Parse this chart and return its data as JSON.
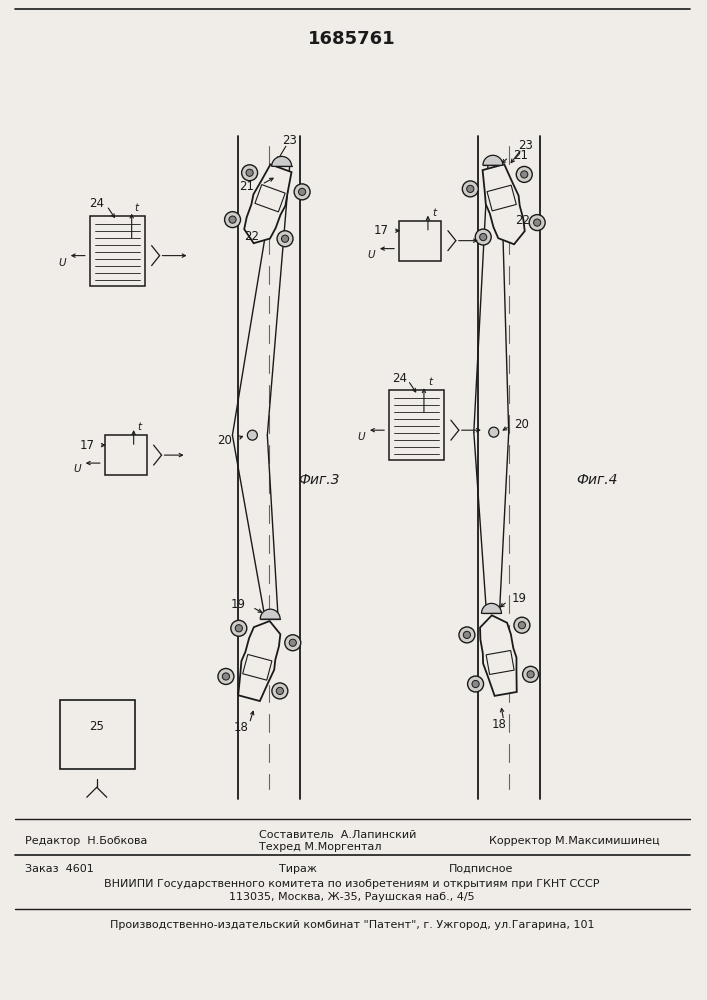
{
  "patent_number": "1685761",
  "bg_color": "#f0ede8",
  "line_color": "#1a1a1a",
  "footer_editor": "Редактор  Н.Бобкова",
  "footer_compiler": "Составитель  А.Лапинский",
  "footer_tech": "Техред М.Моргентал",
  "footer_corrector": "Корректор М.Максимишинец",
  "footer_order": "Заказ  4601",
  "footer_tirazh": "Тираж",
  "footer_podpisnoe": "Подписное",
  "footer_vniip1": "ВНИИПИ Государственного комитета по изобретениям и открытиям при ГКНТ СССР",
  "footer_vniip2": "113035, Москва, Ж-35, Раушская наб., 4/5",
  "footer_prod": "Производственно-издательский комбинат \"Патент\", г. Ужгород, ул.Гагарина, 101",
  "fig3_label": "Фиг.3",
  "fig4_label": "Фиг.4"
}
